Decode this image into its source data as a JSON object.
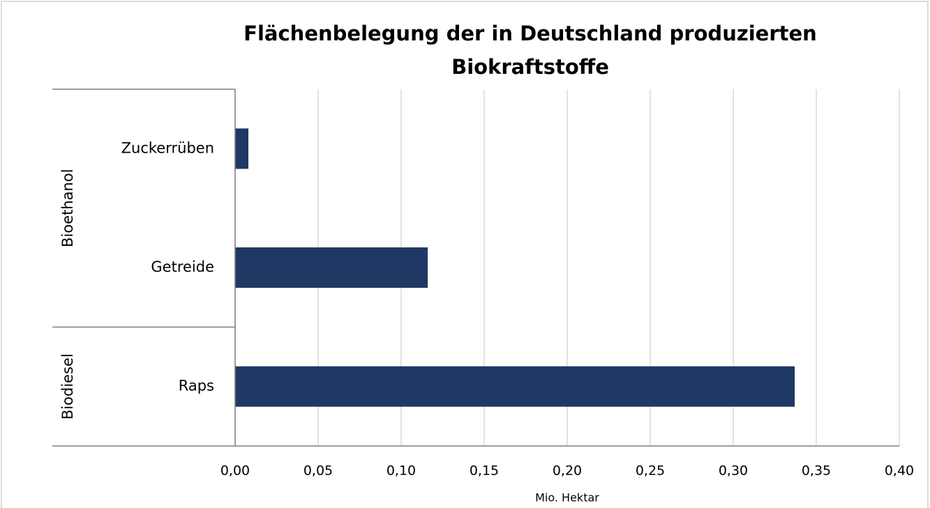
{
  "chart_data": {
    "type": "bar",
    "orientation": "horizontal",
    "title": [
      "Flächenbelegung der in Deutschland produzierten",
      "Biokraftstoffe"
    ],
    "xlabel": "Mio. Hektar",
    "groups": [
      {
        "name": "Bioethanol",
        "categories": [
          "Zuckerrüben",
          "Getreide"
        ],
        "values": [
          0.008,
          0.116
        ]
      },
      {
        "name": "Biodiesel",
        "categories": [
          "Raps"
        ],
        "values": [
          0.337
        ]
      }
    ],
    "color": "#203864",
    "xlim": [
      0,
      0.4
    ],
    "xticks": [
      {
        "value": 0,
        "label": "0,00"
      },
      {
        "value": 0.05,
        "label": "0,05"
      },
      {
        "value": 0.1,
        "label": "0,10"
      },
      {
        "value": 0.15,
        "label": "0,15"
      },
      {
        "value": 0.2,
        "label": "0,20"
      },
      {
        "value": 0.25,
        "label": "0,25"
      },
      {
        "value": 0.3,
        "label": "0,30"
      },
      {
        "value": 0.35,
        "label": "0,35"
      },
      {
        "value": 0.4,
        "label": "0,40"
      }
    ],
    "grid": true
  }
}
